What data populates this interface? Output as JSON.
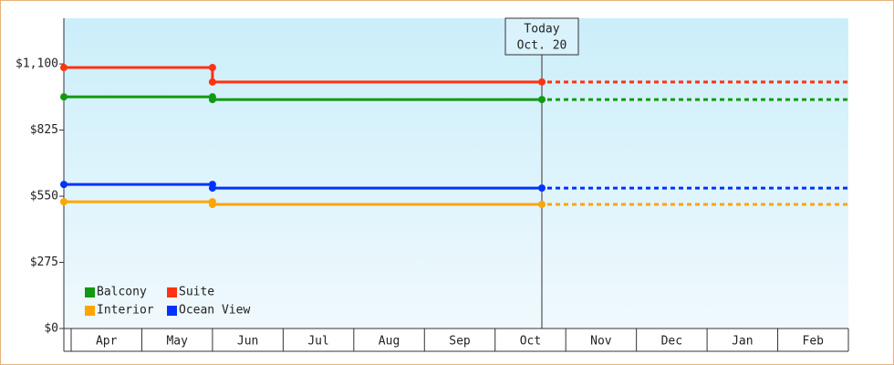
{
  "chart_data": {
    "type": "step-line",
    "categories": [
      "Apr",
      "May",
      "Jun",
      "Jul",
      "Aug",
      "Sep",
      "Oct",
      "Nov",
      "Dec",
      "Jan",
      "Feb"
    ],
    "series": [
      {
        "name": "Balcony",
        "color": "#119911",
        "values": [
          963,
          963,
          952,
          952,
          952,
          952,
          952,
          null,
          null,
          null,
          null
        ]
      },
      {
        "name": "Suite",
        "color": "#ff3311",
        "values": [
          1085,
          1085,
          1025,
          1025,
          1025,
          1025,
          1025,
          null,
          null,
          null,
          null
        ]
      },
      {
        "name": "Interior",
        "color": "#ffa500",
        "values": [
          527,
          527,
          516,
          516,
          516,
          516,
          516,
          null,
          null,
          null,
          null
        ]
      },
      {
        "name": "Ocean View",
        "color": "#0033ff",
        "values": [
          599,
          599,
          584,
          584,
          584,
          584,
          584,
          null,
          null,
          null,
          null
        ]
      }
    ],
    "ylim": [
      0,
      1290
    ],
    "yticks": [
      {
        "value": 0,
        "label": "$0"
      },
      {
        "value": 275,
        "label": "$275"
      },
      {
        "value": 550,
        "label": "$550"
      },
      {
        "value": 825,
        "label": "$825"
      },
      {
        "value": 1100,
        "label": "$1,100"
      }
    ],
    "annotation": {
      "title": "Today",
      "date": "Oct. 20"
    },
    "legend": "lower left",
    "projection": "dashed"
  }
}
